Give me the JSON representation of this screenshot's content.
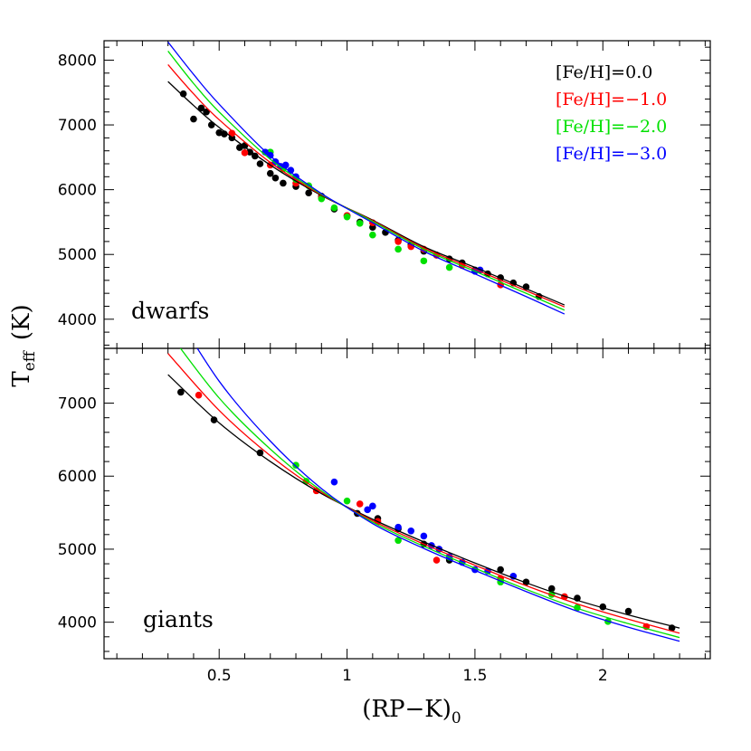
{
  "chart_data": {
    "type": "scatter",
    "xlabel": "(RP−K)",
    "xlabel_sub": "0",
    "ylabel": "T",
    "ylabel_sub": "eff",
    "ylabel_unit": "(K)",
    "xlim": [
      0.05,
      2.42
    ],
    "xticks": [
      0.5,
      1,
      1.5,
      2
    ],
    "xtick_labels": [
      "0.5",
      "1",
      "1.5",
      "2"
    ],
    "legend": {
      "placement": "top-right",
      "entries": [
        {
          "label": "[Fe/H]=0.0",
          "color": "#000000"
        },
        {
          "label": "[Fe/H]=−1.0",
          "color": "#ff0000"
        },
        {
          "label": "[Fe/H]=−2.0",
          "color": "#00e000"
        },
        {
          "label": "[Fe/H]=−3.0",
          "color": "#0000ff"
        }
      ]
    },
    "panels": [
      {
        "name": "dwarfs",
        "ylim": [
          3550,
          8300
        ],
        "yticks": [
          4000,
          5000,
          6000,
          7000,
          8000
        ],
        "ytick_labels": [
          "4000",
          "5000",
          "6000",
          "7000",
          "8000"
        ],
        "series": [
          {
            "color": "#000000",
            "curve": {
              "x": [
                0.3,
                0.4,
                0.5,
                0.7,
                0.9,
                1.1,
                1.3,
                1.5,
                1.7,
                1.85
              ],
              "y": [
                7670,
                7300,
                6960,
                6380,
                5910,
                5530,
                5120,
                4800,
                4470,
                4220
              ]
            },
            "points": [
              [
                0.36,
                7480
              ],
              [
                0.4,
                7090
              ],
              [
                0.43,
                7260
              ],
              [
                0.45,
                7200
              ],
              [
                0.47,
                7000
              ],
              [
                0.5,
                6880
              ],
              [
                0.52,
                6860
              ],
              [
                0.55,
                6800
              ],
              [
                0.58,
                6650
              ],
              [
                0.6,
                6680
              ],
              [
                0.62,
                6580
              ],
              [
                0.64,
                6520
              ],
              [
                0.66,
                6400
              ],
              [
                0.7,
                6250
              ],
              [
                0.72,
                6180
              ],
              [
                0.75,
                6100
              ],
              [
                0.8,
                6050
              ],
              [
                0.85,
                5950
              ],
              [
                0.9,
                5900
              ],
              [
                0.95,
                5700
              ],
              [
                1.0,
                5600
              ],
              [
                1.05,
                5500
              ],
              [
                1.1,
                5420
              ],
              [
                1.15,
                5340
              ],
              [
                1.2,
                5220
              ],
              [
                1.25,
                5150
              ],
              [
                1.3,
                5050
              ],
              [
                1.35,
                4990
              ],
              [
                1.4,
                4930
              ],
              [
                1.45,
                4870
              ],
              [
                1.5,
                4760
              ],
              [
                1.55,
                4700
              ],
              [
                1.6,
                4640
              ],
              [
                1.65,
                4560
              ],
              [
                1.7,
                4500
              ],
              [
                1.75,
                4350
              ]
            ]
          },
          {
            "color": "#ff0000",
            "curve": {
              "x": [
                0.3,
                0.4,
                0.5,
                0.7,
                0.9,
                1.1,
                1.3,
                1.5,
                1.7,
                1.85
              ],
              "y": [
                7930,
                7480,
                7080,
                6420,
                5920,
                5520,
                5100,
                4770,
                4440,
                4190
              ]
            },
            "points": [
              [
                0.55,
                6870
              ],
              [
                0.6,
                6570
              ],
              [
                0.7,
                6380
              ],
              [
                0.8,
                6100
              ],
              [
                0.9,
                5880
              ],
              [
                1.0,
                5600
              ],
              [
                1.1,
                5490
              ],
              [
                1.2,
                5200
              ],
              [
                1.25,
                5120
              ],
              [
                1.3,
                5080
              ],
              [
                1.35,
                4990
              ],
              [
                1.45,
                4830
              ],
              [
                1.6,
                4530
              ]
            ]
          },
          {
            "color": "#00e000",
            "curve": {
              "x": [
                0.3,
                0.4,
                0.5,
                0.7,
                0.9,
                1.1,
                1.3,
                1.5,
                1.7,
                1.85
              ],
              "y": [
                8140,
                7640,
                7200,
                6470,
                5930,
                5510,
                5080,
                4740,
                4400,
                4140
              ]
            },
            "points": [
              [
                0.7,
                6580
              ],
              [
                0.75,
                6320
              ],
              [
                0.8,
                6160
              ],
              [
                0.85,
                6060
              ],
              [
                0.9,
                5860
              ],
              [
                0.95,
                5720
              ],
              [
                1.0,
                5580
              ],
              [
                1.05,
                5480
              ],
              [
                1.1,
                5300
              ],
              [
                1.2,
                5080
              ],
              [
                1.3,
                4900
              ],
              [
                1.4,
                4800
              ]
            ]
          },
          {
            "color": "#0000ff",
            "curve": {
              "x": [
                0.3,
                0.4,
                0.5,
                0.7,
                0.9,
                1.1,
                1.3,
                1.5,
                1.7,
                1.85
              ],
              "y": [
                8280,
                7780,
                7320,
                6520,
                5940,
                5490,
                5050,
                4700,
                4350,
                4080
              ]
            },
            "points": [
              [
                0.68,
                6580
              ],
              [
                0.7,
                6530
              ],
              [
                0.72,
                6430
              ],
              [
                0.74,
                6360
              ],
              [
                0.76,
                6380
              ],
              [
                0.78,
                6300
              ],
              [
                0.8,
                6200
              ],
              [
                1.5,
                4740
              ],
              [
                1.52,
                4760
              ]
            ]
          }
        ]
      },
      {
        "name": "giants",
        "ylim": [
          3500,
          7750
        ],
        "yticks": [
          4000,
          5000,
          6000,
          7000
        ],
        "ytick_labels": [
          "4000",
          "5000",
          "6000",
          "7000"
        ],
        "series": [
          {
            "color": "#000000",
            "curve": {
              "x": [
                0.3,
                0.5,
                0.7,
                0.9,
                1.1,
                1.3,
                1.5,
                1.7,
                1.9,
                2.1,
                2.3
              ],
              "y": [
                7390,
                6730,
                6200,
                5760,
                5410,
                5100,
                4810,
                4540,
                4300,
                4100,
                3920
              ]
            },
            "points": [
              [
                0.35,
                7150
              ],
              [
                0.48,
                6770
              ],
              [
                0.66,
                6320
              ],
              [
                1.04,
                5490
              ],
              [
                1.12,
                5420
              ],
              [
                1.2,
                5280
              ],
              [
                1.3,
                5070
              ],
              [
                1.4,
                4850
              ],
              [
                1.6,
                4720
              ],
              [
                1.7,
                4550
              ],
              [
                1.8,
                4460
              ],
              [
                1.9,
                4330
              ],
              [
                2.0,
                4210
              ],
              [
                2.1,
                4150
              ],
              [
                2.27,
                3920
              ]
            ]
          },
          {
            "color": "#ff0000",
            "curve": {
              "x": [
                0.3,
                0.5,
                0.7,
                0.9,
                1.1,
                1.3,
                1.5,
                1.7,
                1.9,
                2.1,
                2.3
              ],
              "y": [
                7680,
                6900,
                6280,
                5780,
                5390,
                5070,
                4780,
                4500,
                4250,
                4040,
                3850
              ]
            },
            "points": [
              [
                0.42,
                7110
              ],
              [
                0.88,
                5800
              ],
              [
                1.05,
                5620
              ],
              [
                1.12,
                5380
              ],
              [
                1.35,
                4850
              ],
              [
                1.6,
                4600
              ],
              [
                1.85,
                4350
              ],
              [
                2.17,
                3940
              ]
            ]
          },
          {
            "color": "#00e000",
            "curve": {
              "x": [
                0.3,
                0.5,
                0.7,
                0.9,
                1.1,
                1.3,
                1.5,
                1.7,
                1.9,
                2.1,
                2.3
              ],
              "y": [
                7980,
                7070,
                6370,
                5800,
                5370,
                5040,
                4740,
                4450,
                4190,
                3980,
                3790
              ]
            },
            "points": [
              [
                0.8,
                6150
              ],
              [
                0.84,
                5930
              ],
              [
                1.0,
                5660
              ],
              [
                1.2,
                5120
              ],
              [
                1.4,
                4890
              ],
              [
                1.6,
                4550
              ],
              [
                1.8,
                4380
              ],
              [
                1.9,
                4200
              ],
              [
                2.02,
                4010
              ]
            ]
          },
          {
            "color": "#0000ff",
            "curve": {
              "x": [
                0.3,
                0.5,
                0.7,
                0.9,
                1.1,
                1.3,
                1.5,
                1.7,
                1.9,
                2.1,
                2.3
              ],
              "y": [
                8400,
                7300,
                6480,
                5830,
                5350,
                5010,
                4710,
                4420,
                4150,
                3930,
                3740
              ]
            },
            "points": [
              [
                0.95,
                5920
              ],
              [
                1.08,
                5540
              ],
              [
                1.1,
                5590
              ],
              [
                1.2,
                5300
              ],
              [
                1.25,
                5250
              ],
              [
                1.3,
                5180
              ],
              [
                1.33,
                5050
              ],
              [
                1.36,
                5000
              ],
              [
                1.4,
                4900
              ],
              [
                1.45,
                4820
              ],
              [
                1.5,
                4720
              ],
              [
                1.55,
                4700
              ],
              [
                1.65,
                4630
              ]
            ]
          }
        ]
      }
    ]
  }
}
